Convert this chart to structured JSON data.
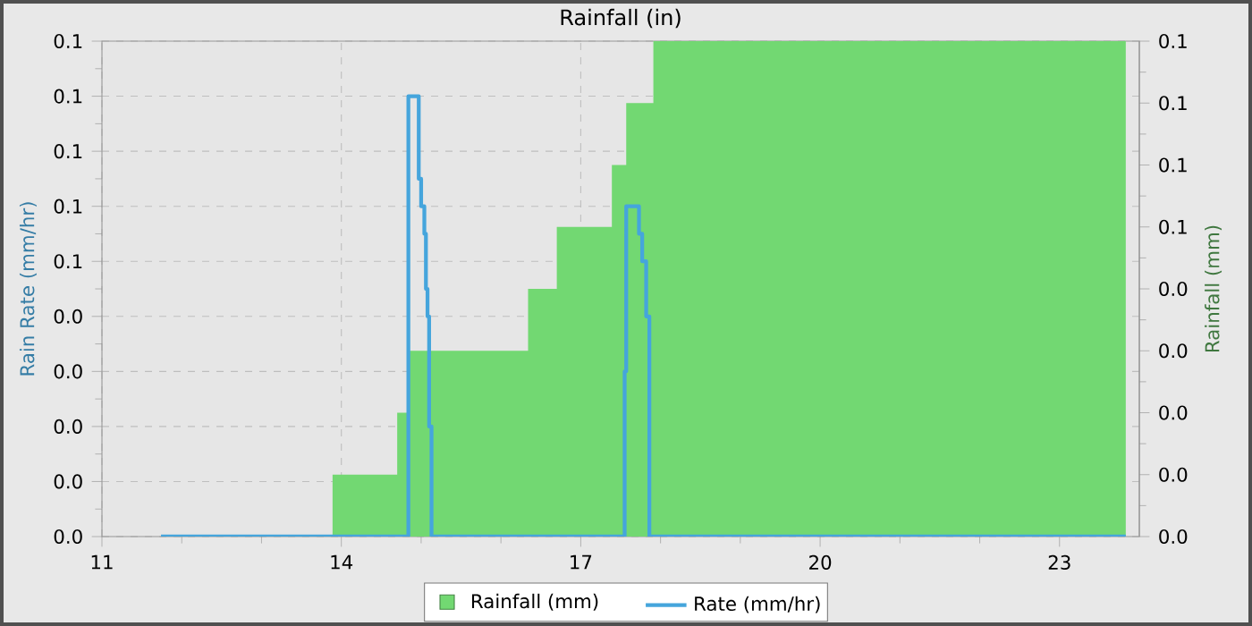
{
  "chart_data": {
    "type": "step",
    "title": "Rainfall (in)",
    "ylabel": "Rain Rate (mm/hr)",
    "y2label": "Rainfall (mm)",
    "xlim": [
      11,
      24
    ],
    "xticks": [
      11,
      14,
      17,
      20,
      23
    ],
    "ylim": [
      0,
      0.09
    ],
    "yticks": [
      {
        "value": 0,
        "label": "0.0"
      },
      {
        "value": 0.01,
        "label": "0.0"
      },
      {
        "value": 0.02,
        "label": "0.0"
      },
      {
        "value": 0.03,
        "label": "0.0"
      },
      {
        "value": 0.04,
        "label": "0.0"
      },
      {
        "value": 0.05,
        "label": "0.1"
      },
      {
        "value": 0.06,
        "label": "0.1"
      },
      {
        "value": 0.07,
        "label": "0.1"
      },
      {
        "value": 0.08,
        "label": "0.1"
      },
      {
        "value": 0.09,
        "label": "0.1"
      }
    ],
    "y2lim": [
      0,
      0.08
    ],
    "y2ticks": [
      {
        "value": 0,
        "label": "0.0"
      },
      {
        "value": 0.01,
        "label": "0.0"
      },
      {
        "value": 0.02,
        "label": "0.0"
      },
      {
        "value": 0.03,
        "label": "0.0"
      },
      {
        "value": 0.04,
        "label": "0.0"
      },
      {
        "value": 0.05,
        "label": "0.1"
      },
      {
        "value": 0.06,
        "label": "0.1"
      },
      {
        "value": 0.07,
        "label": "0.1"
      },
      {
        "value": 0.08,
        "label": "0.1"
      }
    ],
    "grid": true,
    "legend": "bottom",
    "series": [
      {
        "name": "Rainfall (mm)",
        "type": "area",
        "axis": "y2",
        "color": "#72d872",
        "x": [
          11.74,
          13.89,
          14.7,
          14.83,
          16.34,
          16.7,
          17.39,
          17.57,
          17.91,
          23.83
        ],
        "values": [
          0,
          0.01,
          0.02,
          0.03,
          0.04,
          0.05,
          0.06,
          0.07,
          0.08,
          0.08
        ]
      },
      {
        "name": "Rate (mm/hr)",
        "axis": "y",
        "color": "#45a5dc",
        "x": [
          11.74,
          14.84,
          14.97,
          15.0,
          15.04,
          15.06,
          15.08,
          15.1,
          15.13,
          17.55,
          17.57,
          17.73,
          17.77,
          17.82,
          17.86,
          23.83
        ],
        "values": [
          0,
          0.08,
          0.065,
          0.06,
          0.055,
          0.045,
          0.04,
          0.02,
          0,
          0.03,
          0.06,
          0.055,
          0.05,
          0.04,
          0,
          0
        ]
      }
    ]
  }
}
